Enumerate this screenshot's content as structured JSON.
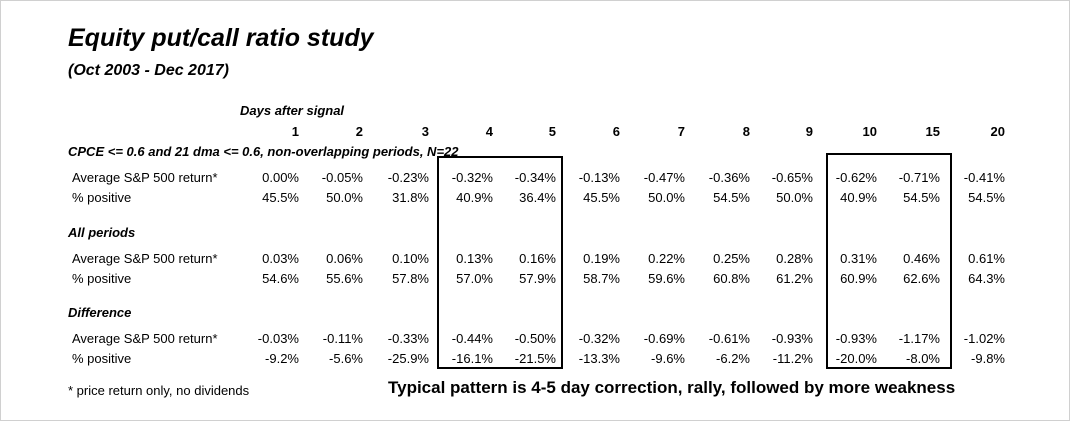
{
  "title": "Equity put/call ratio study",
  "subtitle": "(Oct 2003 - Dec 2017)",
  "days_label": "Days after signal",
  "columns": [
    "1",
    "2",
    "3",
    "4",
    "5",
    "6",
    "7",
    "8",
    "9",
    "10",
    "15",
    "20"
  ],
  "sections": [
    {
      "title": "CPCE <= 0.6 and 21 dma <= 0.6, non-overlapping periods, N=22",
      "rows": [
        {
          "label": "Average S&P 500 return*",
          "values": [
            "0.00%",
            "-0.05%",
            "-0.23%",
            "-0.32%",
            "-0.34%",
            "-0.13%",
            "-0.47%",
            "-0.36%",
            "-0.65%",
            "-0.62%",
            "-0.71%",
            "-0.41%"
          ]
        },
        {
          "label": "% positive",
          "values": [
            "45.5%",
            "50.0%",
            "31.8%",
            "40.9%",
            "36.4%",
            "45.5%",
            "50.0%",
            "54.5%",
            "50.0%",
            "40.9%",
            "54.5%",
            "54.5%"
          ]
        }
      ]
    },
    {
      "title": "All periods",
      "rows": [
        {
          "label": "Average S&P 500 return*",
          "values": [
            "0.03%",
            "0.06%",
            "0.10%",
            "0.13%",
            "0.16%",
            "0.19%",
            "0.22%",
            "0.25%",
            "0.28%",
            "0.31%",
            "0.46%",
            "0.61%"
          ]
        },
        {
          "label": "% positive",
          "values": [
            "54.6%",
            "55.6%",
            "57.8%",
            "57.0%",
            "57.9%",
            "58.7%",
            "59.6%",
            "60.8%",
            "61.2%",
            "60.9%",
            "62.6%",
            "64.3%"
          ]
        }
      ]
    },
    {
      "title": "Difference",
      "rows": [
        {
          "label": "Average S&P 500 return*",
          "values": [
            "-0.03%",
            "-0.11%",
            "-0.33%",
            "-0.44%",
            "-0.50%",
            "-0.32%",
            "-0.69%",
            "-0.61%",
            "-0.93%",
            "-0.93%",
            "-1.17%",
            "-1.02%"
          ]
        },
        {
          "label": "% positive",
          "values": [
            "-9.2%",
            "-5.6%",
            "-25.9%",
            "-16.1%",
            "-21.5%",
            "-13.3%",
            "-9.6%",
            "-6.2%",
            "-11.2%",
            "-20.0%",
            "-8.0%",
            "-9.8%"
          ]
        }
      ]
    }
  ],
  "footnote": "* price return only, no dividends",
  "pattern_note": "Typical pattern is 4-5 day correction, rally, followed by more weakness"
}
